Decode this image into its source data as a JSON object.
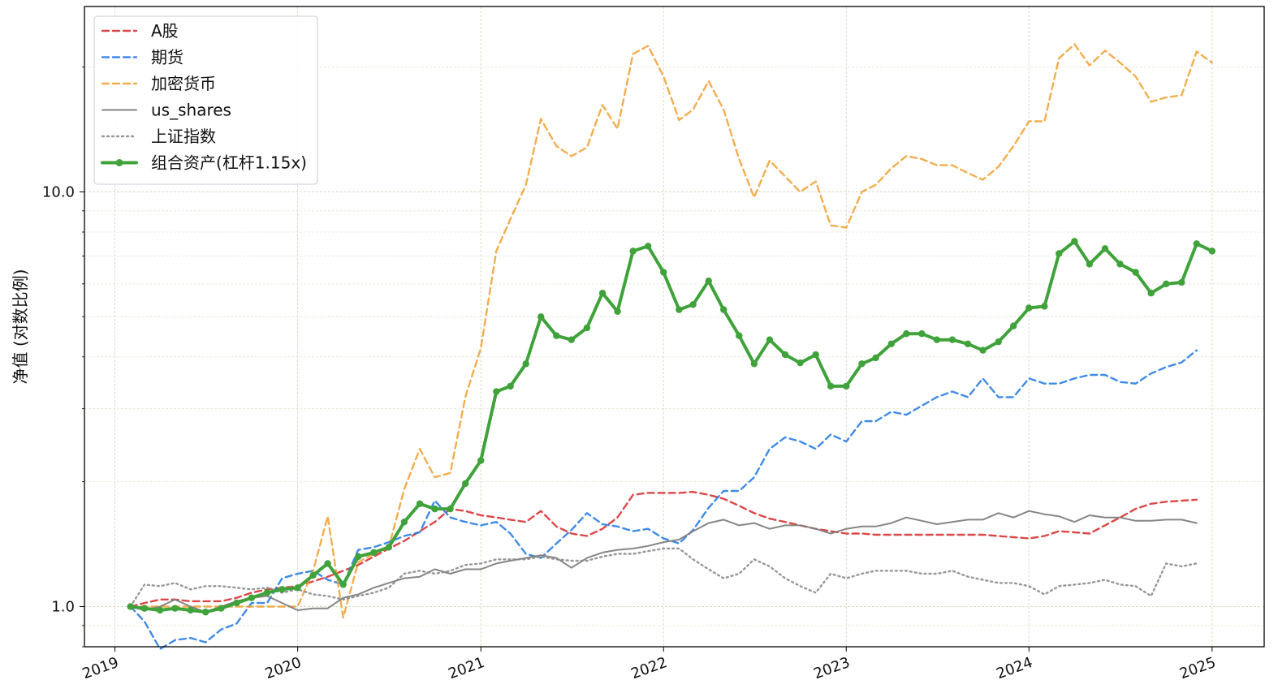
{
  "chart_data": {
    "type": "line",
    "title": "",
    "xlabel": "",
    "ylabel": "净值 (对数比例)",
    "y_scale": "log",
    "ylim": [
      0.8,
      28
    ],
    "xlim": [
      "2018-11-01",
      "2025-04-15"
    ],
    "x_ticks": [
      "2019",
      "2020",
      "2021",
      "2022",
      "2023",
      "2024",
      "2025"
    ],
    "y_ticks": [
      {
        "value": 1.0,
        "label": "1.0"
      },
      {
        "value": 10.0,
        "label": "10.0"
      }
    ],
    "grid": true,
    "legend_position": "top-left",
    "x_start": "2019-02",
    "x_step": "month",
    "series": [
      {
        "name": "A股",
        "color": "#d62728",
        "style": "dashed",
        "values": [
          1.0,
          1.02,
          1.04,
          1.04,
          1.03,
          1.03,
          1.03,
          1.05,
          1.08,
          1.1,
          1.11,
          1.12,
          1.15,
          1.18,
          1.22,
          1.26,
          1.32,
          1.38,
          1.44,
          1.52,
          1.6,
          1.72,
          1.7,
          1.66,
          1.64,
          1.62,
          1.6,
          1.7,
          1.56,
          1.5,
          1.48,
          1.54,
          1.64,
          1.86,
          1.88,
          1.88,
          1.88,
          1.89,
          1.86,
          1.82,
          1.75,
          1.68,
          1.63,
          1.6,
          1.57,
          1.54,
          1.52,
          1.5,
          1.5,
          1.49,
          1.49,
          1.49,
          1.49,
          1.49,
          1.49,
          1.49,
          1.49,
          1.48,
          1.47,
          1.46,
          1.48,
          1.52,
          1.51,
          1.5,
          1.57,
          1.64,
          1.72,
          1.77,
          1.79,
          1.8,
          1.81
        ]
      },
      {
        "name": "期货",
        "color": "#1f77e4",
        "style": "dashed",
        "values": [
          1.0,
          0.92,
          0.79,
          0.83,
          0.84,
          0.82,
          0.88,
          0.91,
          1.02,
          1.02,
          1.17,
          1.2,
          1.22,
          1.16,
          1.13,
          1.37,
          1.39,
          1.43,
          1.48,
          1.51,
          1.8,
          1.64,
          1.6,
          1.57,
          1.6,
          1.5,
          1.34,
          1.31,
          1.42,
          1.53,
          1.68,
          1.58,
          1.56,
          1.52,
          1.54,
          1.46,
          1.42,
          1.53,
          1.73,
          1.9,
          1.9,
          2.05,
          2.4,
          2.56,
          2.5,
          2.4,
          2.6,
          2.5,
          2.8,
          2.8,
          2.95,
          2.9,
          3.05,
          3.2,
          3.3,
          3.2,
          3.55,
          3.2,
          3.2,
          3.55,
          3.45,
          3.45,
          3.55,
          3.62,
          3.62,
          3.48,
          3.45,
          3.65,
          3.78,
          3.88,
          4.15
        ]
      },
      {
        "name": "加密货币",
        "color": "#f0a030",
        "style": "dashed",
        "values": [
          1.0,
          1.0,
          1.0,
          1.0,
          1.0,
          1.0,
          1.0,
          1.0,
          1.0,
          1.0,
          1.0,
          1.0,
          1.22,
          1.65,
          0.94,
          1.28,
          1.34,
          1.39,
          1.92,
          2.4,
          2.05,
          2.1,
          3.2,
          4.2,
          7.2,
          8.6,
          10.4,
          15.0,
          12.9,
          12.2,
          12.8,
          16.2,
          14.2,
          21.5,
          22.5,
          19.0,
          14.9,
          15.8,
          18.5,
          15.8,
          12.0,
          9.7,
          11.9,
          10.9,
          10.0,
          10.6,
          8.3,
          8.2,
          10.0,
          10.4,
          11.4,
          12.2,
          12.0,
          11.6,
          11.6,
          11.1,
          10.7,
          11.5,
          12.9,
          14.8,
          14.8,
          21.0,
          22.7,
          20.2,
          21.9,
          20.5,
          19.0,
          16.5,
          16.9,
          17.1,
          21.8,
          20.5
        ]
      },
      {
        "name": "us_shares",
        "color": "#7f7f7f",
        "style": "solid",
        "values": [
          1.0,
          0.98,
          1.0,
          1.04,
          1.0,
          0.97,
          1.0,
          1.03,
          1.05,
          1.06,
          1.02,
          0.98,
          0.99,
          0.99,
          1.05,
          1.07,
          1.11,
          1.14,
          1.17,
          1.18,
          1.23,
          1.2,
          1.23,
          1.23,
          1.27,
          1.29,
          1.31,
          1.33,
          1.31,
          1.24,
          1.31,
          1.35,
          1.37,
          1.38,
          1.4,
          1.43,
          1.45,
          1.52,
          1.59,
          1.62,
          1.57,
          1.59,
          1.54,
          1.57,
          1.57,
          1.54,
          1.5,
          1.54,
          1.56,
          1.56,
          1.59,
          1.64,
          1.61,
          1.58,
          1.6,
          1.62,
          1.62,
          1.68,
          1.64,
          1.7,
          1.67,
          1.65,
          1.6,
          1.66,
          1.64,
          1.64,
          1.61,
          1.61,
          1.62,
          1.62,
          1.59
        ]
      },
      {
        "name": "上证指数",
        "color": "#8c8c8c",
        "style": "dotted",
        "values": [
          1.0,
          1.13,
          1.12,
          1.14,
          1.1,
          1.12,
          1.12,
          1.11,
          1.1,
          1.11,
          1.08,
          1.1,
          1.07,
          1.06,
          1.04,
          1.06,
          1.08,
          1.11,
          1.2,
          1.22,
          1.2,
          1.22,
          1.26,
          1.27,
          1.3,
          1.3,
          1.3,
          1.32,
          1.3,
          1.29,
          1.29,
          1.32,
          1.34,
          1.34,
          1.36,
          1.38,
          1.38,
          1.3,
          1.23,
          1.17,
          1.2,
          1.3,
          1.25,
          1.17,
          1.12,
          1.08,
          1.2,
          1.17,
          1.2,
          1.22,
          1.22,
          1.22,
          1.2,
          1.2,
          1.22,
          1.18,
          1.16,
          1.14,
          1.14,
          1.12,
          1.07,
          1.12,
          1.13,
          1.14,
          1.16,
          1.13,
          1.12,
          1.06,
          1.27,
          1.25,
          1.27
        ]
      },
      {
        "name": "组合资产(杠杆1.15x)",
        "color": "#3fa23a",
        "style": "solid-marker",
        "values": [
          1.0,
          0.99,
          0.98,
          0.99,
          0.98,
          0.97,
          0.99,
          1.02,
          1.05,
          1.08,
          1.1,
          1.11,
          1.19,
          1.27,
          1.13,
          1.32,
          1.35,
          1.39,
          1.6,
          1.77,
          1.72,
          1.72,
          1.98,
          2.25,
          3.3,
          3.4,
          3.85,
          5.0,
          4.5,
          4.4,
          4.7,
          5.7,
          5.15,
          7.2,
          7.4,
          6.4,
          5.2,
          5.35,
          6.1,
          5.2,
          4.5,
          3.85,
          4.4,
          4.05,
          3.87,
          4.05,
          3.4,
          3.4,
          3.85,
          3.98,
          4.3,
          4.55,
          4.55,
          4.4,
          4.4,
          4.3,
          4.15,
          4.35,
          4.75,
          5.25,
          5.3,
          7.1,
          7.6,
          6.7,
          7.3,
          6.7,
          6.4,
          5.7,
          6.0,
          6.05,
          7.5,
          7.2
        ]
      }
    ]
  }
}
